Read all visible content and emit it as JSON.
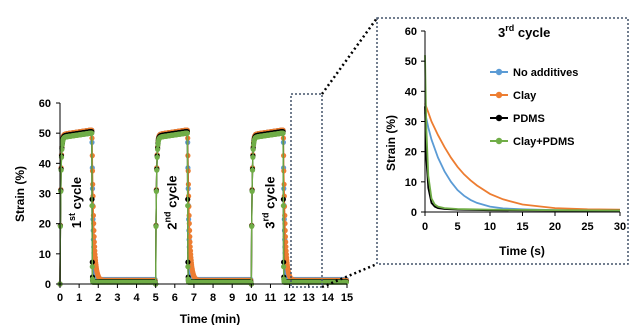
{
  "colors": {
    "no_additives": "#5B9BD5",
    "clay": "#ED7D31",
    "pdms": "#000000",
    "clay_pdms": "#70AD47",
    "zoom_box": "#44546A"
  },
  "chart_data": [
    {
      "type": "scatter",
      "xlabel": "Time (min)",
      "ylabel": "Strain (%)",
      "xlim": [
        0,
        15
      ],
      "ylim": [
        0,
        60
      ],
      "xticks": [
        "0",
        "1",
        "2",
        "3",
        "4",
        "5",
        "6",
        "7",
        "8",
        "9",
        "10",
        "11",
        "12",
        "13",
        "14",
        "15"
      ],
      "yticks": [
        "0",
        "10",
        "20",
        "30",
        "40",
        "50",
        "60"
      ],
      "grid": false,
      "annotations": [
        {
          "base": "1",
          "sup": "st",
          "rest": " cycle",
          "x": 1.1,
          "y": 27
        },
        {
          "base": "2",
          "sup": "nd",
          "rest": " cycle",
          "x": 6.1,
          "y": 27
        },
        {
          "base": "3",
          "sup": "rd",
          "rest": " cycle",
          "x": 11.2,
          "y": 27
        }
      ],
      "cycles": [
        {
          "on": 0,
          "off": 1.67,
          "end": 5
        },
        {
          "on": 5,
          "off": 6.67,
          "end": 10
        },
        {
          "on": 10,
          "off": 11.67,
          "end": 15
        }
      ],
      "series": [
        {
          "name": "No additives",
          "color_key": "no_additives",
          "plateau": 51,
          "residual": 1.5
        },
        {
          "name": "Clay",
          "color_key": "clay",
          "plateau": 51,
          "residual": 1.2
        },
        {
          "name": "PDMS",
          "color_key": "pdms",
          "plateau": 50.5,
          "residual": 0.8
        },
        {
          "name": "Clay+PDMS",
          "color_key": "clay_pdms",
          "plateau": 50,
          "residual": 0.6
        }
      ]
    },
    {
      "type": "line",
      "title_base": "3",
      "title_sup": "rd",
      "title_rest": " cycle",
      "xlabel": "Time (s)",
      "ylabel": "Strain (%)",
      "xlim": [
        0,
        30
      ],
      "ylim": [
        0,
        60
      ],
      "xticks": [
        "0",
        "5",
        "10",
        "15",
        "20",
        "25",
        "30"
      ],
      "yticks": [
        "0",
        "10",
        "20",
        "30",
        "40",
        "50",
        "60"
      ],
      "grid": false,
      "legend": "top-right",
      "series": [
        {
          "name": "No additives",
          "color_key": "no_additives",
          "x": [
            0,
            0.5,
            1,
            2,
            3,
            4,
            5,
            6,
            7,
            8,
            10,
            12,
            15,
            20,
            25,
            30
          ],
          "y": [
            33,
            28,
            24,
            18,
            13.5,
            10,
            7.3,
            5.4,
            4,
            3,
            1.8,
            1.2,
            0.9,
            0.6,
            0.5,
            0.5
          ]
        },
        {
          "name": "Clay",
          "color_key": "clay",
          "x": [
            0,
            0.5,
            1,
            2,
            3,
            4,
            5,
            6,
            7,
            8,
            10,
            12,
            15,
            20,
            25,
            30
          ],
          "y": [
            36,
            33,
            30,
            25.5,
            21.5,
            18,
            15,
            12.5,
            10.5,
            8.8,
            6,
            4.2,
            2.5,
            1.3,
            0.9,
            0.8
          ]
        },
        {
          "name": "PDMS",
          "color_key": "pdms",
          "x": [
            0,
            0.2,
            0.5,
            1,
            1.5,
            2,
            3,
            5,
            10,
            20,
            30
          ],
          "y": [
            35,
            18,
            8,
            3,
            1.8,
            1.3,
            1,
            0.8,
            0.6,
            0.5,
            0.5
          ]
        },
        {
          "name": "Clay+PDMS",
          "color_key": "clay_pdms",
          "x": [
            0,
            0.2,
            0.5,
            1,
            1.5,
            2,
            3,
            5,
            10,
            20,
            30
          ],
          "y": [
            52,
            28,
            12,
            4.5,
            2.5,
            1.8,
            1.3,
            1,
            0.8,
            0.6,
            0.5
          ]
        }
      ]
    }
  ]
}
